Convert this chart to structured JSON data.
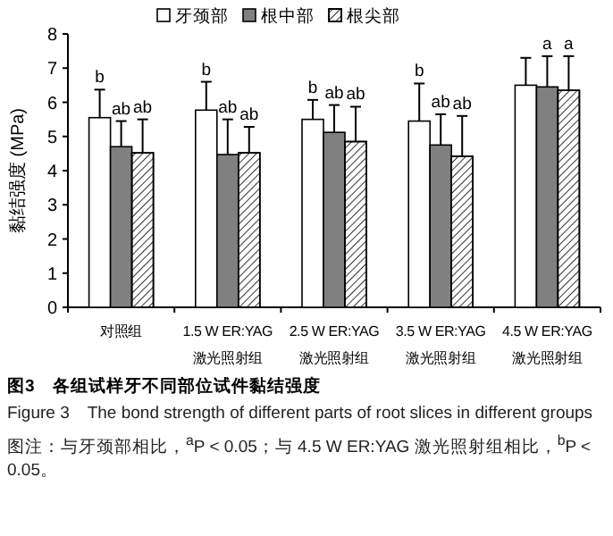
{
  "chart_data": {
    "type": "bar",
    "ylabel": "黏结强度 (MPa)",
    "categories": [
      "对照组",
      "1.5 W ER:YAG\n激光照射组",
      "2.5 W ER:YAG\n激光照射组",
      "3.5 W ER:YAG\n激光照射组",
      "4.5 W ER:YAG\n激光照射组"
    ],
    "series": [
      {
        "name": "牙颈部",
        "color": "#ffffff",
        "values": [
          5.55,
          5.77,
          5.5,
          5.45,
          6.5
        ],
        "errors": [
          0.82,
          0.83,
          0.57,
          1.1,
          0.8
        ],
        "value_labels": [
          "b",
          "b",
          "b",
          "b",
          null
        ]
      },
      {
        "name": "根中部",
        "color": "#808080",
        "values": [
          4.7,
          4.47,
          5.12,
          4.75,
          6.45
        ],
        "errors": [
          0.75,
          1.03,
          0.8,
          0.9,
          0.9
        ],
        "value_labels": [
          "ab",
          "ab",
          "ab",
          "ab",
          "a"
        ]
      },
      {
        "name": "根尖部",
        "color": "#ffffff",
        "values": [
          4.52,
          4.52,
          4.85,
          4.42,
          6.35
        ],
        "errors": [
          0.98,
          0.76,
          1.02,
          1.18,
          1.0
        ],
        "value_labels": [
          "ab",
          "ab",
          "ab",
          "ab",
          "a"
        ]
      }
    ],
    "ylim": [
      0,
      8
    ],
    "yticks": [
      0,
      1,
      2,
      3,
      4,
      5,
      6,
      7,
      8
    ],
    "legend": "top",
    "annotations": [
      "图3　各组试样牙不同部位试件黏结强度",
      "Figure 3　The bond strength of different parts of root slices in different groups",
      "图注：与牙颈部相比，$^{a}$P < 0.05；与 4.5 W ER:YAG 激光照射组相比，$^{b}$P < 0.05。"
    ]
  }
}
